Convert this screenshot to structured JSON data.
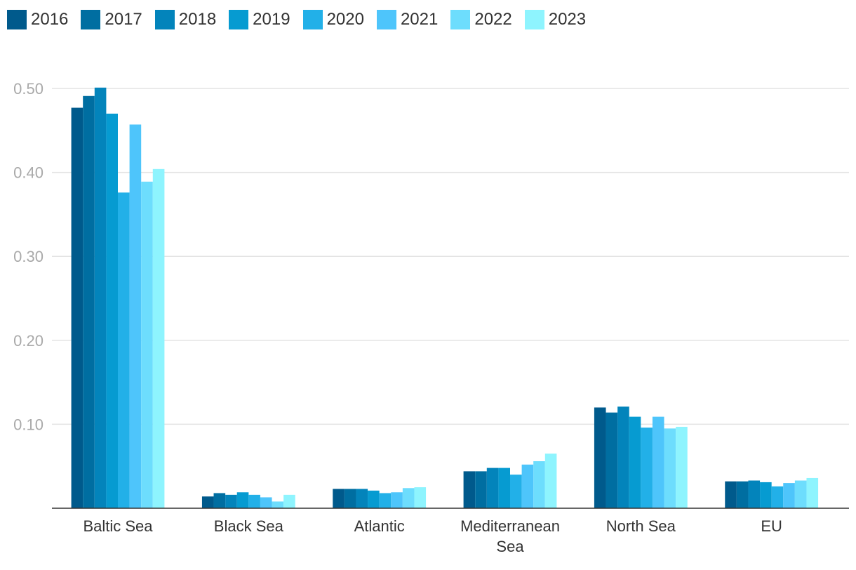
{
  "chart_data": {
    "type": "bar",
    "title": "",
    "xlabel": "",
    "ylabel": "",
    "ylim": [
      0,
      0.5
    ],
    "yticks": [
      "0.10",
      "0.20",
      "0.30",
      "0.40",
      "0.50"
    ],
    "ytick_values": [
      0.1,
      0.2,
      0.3,
      0.4,
      0.5
    ],
    "grid": true,
    "legend_position": "top-left",
    "categories": [
      "Baltic Sea",
      "Black Sea",
      "Atlantic",
      "Mediterranean Sea",
      "North Sea",
      "EU"
    ],
    "series": [
      {
        "name": "2016",
        "color": "#005a8c",
        "values": [
          0.477,
          0.014,
          0.023,
          0.044,
          0.12,
          0.032
        ]
      },
      {
        "name": "2017",
        "color": "#006ea1",
        "values": [
          0.491,
          0.018,
          0.023,
          0.044,
          0.114,
          0.032
        ]
      },
      {
        "name": "2018",
        "color": "#0384bb",
        "values": [
          0.501,
          0.016,
          0.023,
          0.048,
          0.121,
          0.033
        ]
      },
      {
        "name": "2019",
        "color": "#069bd1",
        "values": [
          0.47,
          0.019,
          0.021,
          0.048,
          0.109,
          0.031
        ]
      },
      {
        "name": "2020",
        "color": "#22b0e8",
        "values": [
          0.376,
          0.016,
          0.018,
          0.04,
          0.096,
          0.026
        ]
      },
      {
        "name": "2021",
        "color": "#4ec5fb",
        "values": [
          0.457,
          0.013,
          0.019,
          0.052,
          0.109,
          0.03
        ]
      },
      {
        "name": "2022",
        "color": "#6dddfd",
        "values": [
          0.389,
          0.008,
          0.024,
          0.056,
          0.095,
          0.033
        ]
      },
      {
        "name": "2023",
        "color": "#8ef4fe",
        "values": [
          0.404,
          0.016,
          0.025,
          0.065,
          0.097,
          0.036
        ]
      }
    ]
  }
}
